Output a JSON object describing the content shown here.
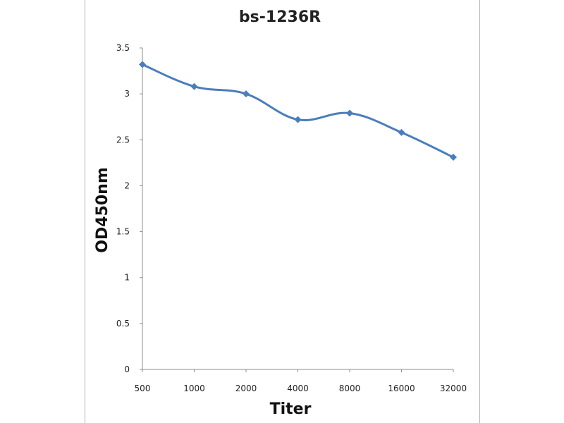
{
  "chart_data": {
    "type": "line",
    "title": "bs-1236R",
    "xlabel": "Titer",
    "ylabel": "OD450nm",
    "categories": [
      "500",
      "1000",
      "2000",
      "4000",
      "8000",
      "16000",
      "32000"
    ],
    "series": [
      {
        "values": [
          3.32,
          3.08,
          3.0,
          2.72,
          2.79,
          2.58,
          2.31
        ]
      }
    ],
    "ylim": [
      0,
      3.5
    ],
    "yticks": [
      "0",
      "0.5",
      "1",
      "1.5",
      "2",
      "2.5",
      "3",
      "3.5"
    ],
    "grid": false,
    "legend": "none",
    "line_color": "#4a7ebb",
    "marker": "diamond"
  }
}
